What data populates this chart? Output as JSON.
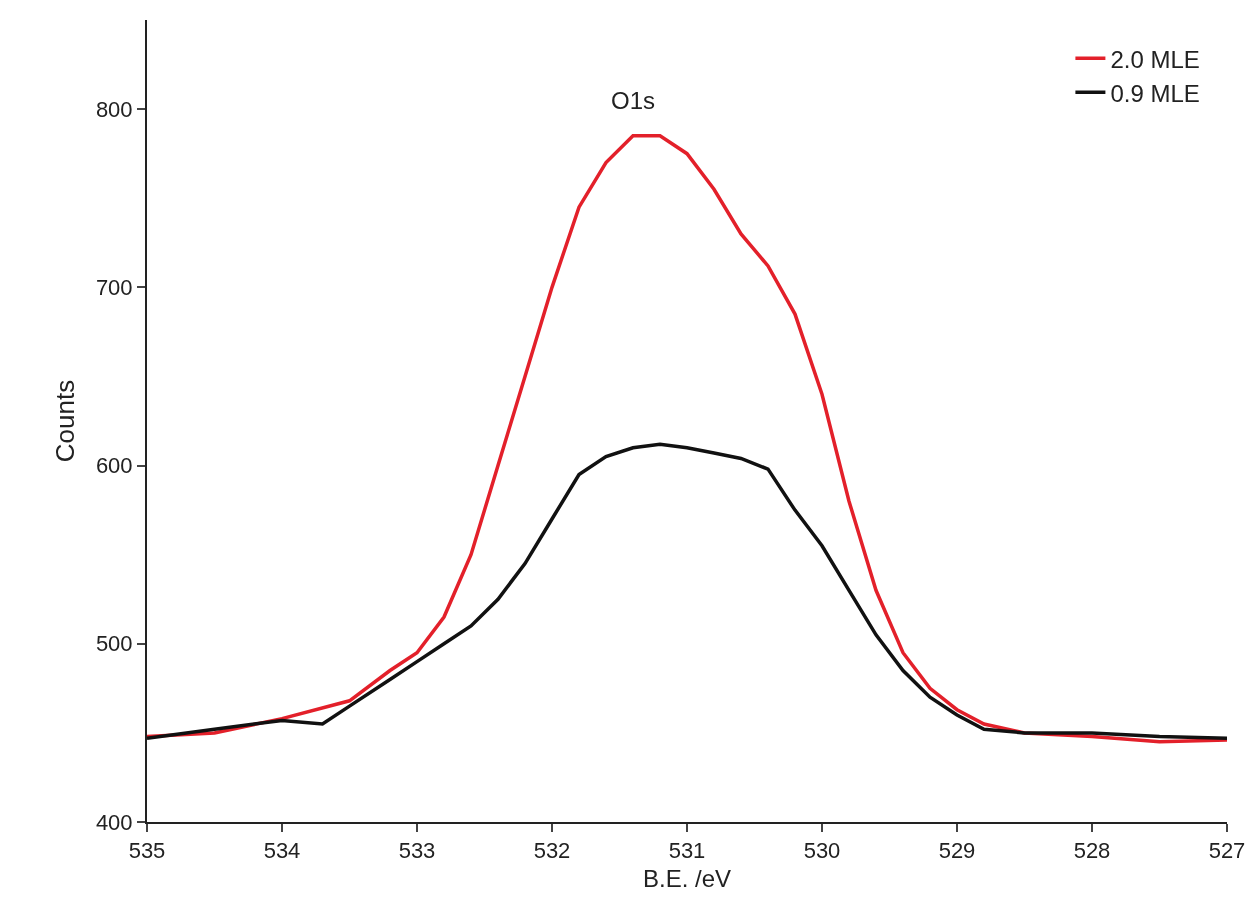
{
  "chart_data": {
    "type": "line",
    "xlabel": "B.E. /eV",
    "ylabel": "Counts",
    "annotations": [
      "O1s"
    ],
    "xlim": [
      535,
      527
    ],
    "xticks": [
      535,
      534,
      533,
      532,
      531,
      530,
      529,
      528,
      527
    ],
    "ylim": [
      400,
      850
    ],
    "yticks": [
      400,
      500,
      600,
      700,
      800
    ],
    "grid": false,
    "legend": "top right",
    "line_style": "solid",
    "marker": "none",
    "series": [
      {
        "name": "2.0 MLE",
        "color": "#e3202a",
        "x": [
          535,
          534.5,
          534,
          533.5,
          533.2,
          533,
          532.8,
          532.6,
          532.4,
          532.2,
          532,
          531.8,
          531.6,
          531.4,
          531.2,
          531,
          530.8,
          530.6,
          530.4,
          530.2,
          530,
          529.8,
          529.6,
          529.4,
          529.2,
          529,
          528.8,
          528.5,
          528,
          527.5,
          527
        ],
        "values": [
          448,
          450,
          458,
          468,
          485,
          495,
          515,
          550,
          600,
          650,
          700,
          745,
          770,
          785,
          785,
          775,
          755,
          730,
          712,
          685,
          640,
          580,
          530,
          495,
          475,
          463,
          455,
          450,
          448,
          445,
          446
        ]
      },
      {
        "name": "0.9 MLE",
        "color": "#111111",
        "x": [
          535,
          534.5,
          534,
          533.7,
          533.5,
          533.2,
          533,
          532.8,
          532.6,
          532.4,
          532.2,
          532,
          531.8,
          531.6,
          531.4,
          531.2,
          531,
          530.8,
          530.6,
          530.4,
          530.2,
          530,
          529.8,
          529.6,
          529.4,
          529.2,
          529,
          528.8,
          528.5,
          528,
          527.5,
          527
        ],
        "values": [
          447,
          452,
          457,
          455,
          465,
          480,
          490,
          500,
          510,
          525,
          545,
          570,
          595,
          605,
          610,
          612,
          610,
          607,
          604,
          598,
          575,
          555,
          530,
          505,
          485,
          470,
          460,
          452,
          450,
          450,
          448,
          447
        ]
      }
    ]
  }
}
